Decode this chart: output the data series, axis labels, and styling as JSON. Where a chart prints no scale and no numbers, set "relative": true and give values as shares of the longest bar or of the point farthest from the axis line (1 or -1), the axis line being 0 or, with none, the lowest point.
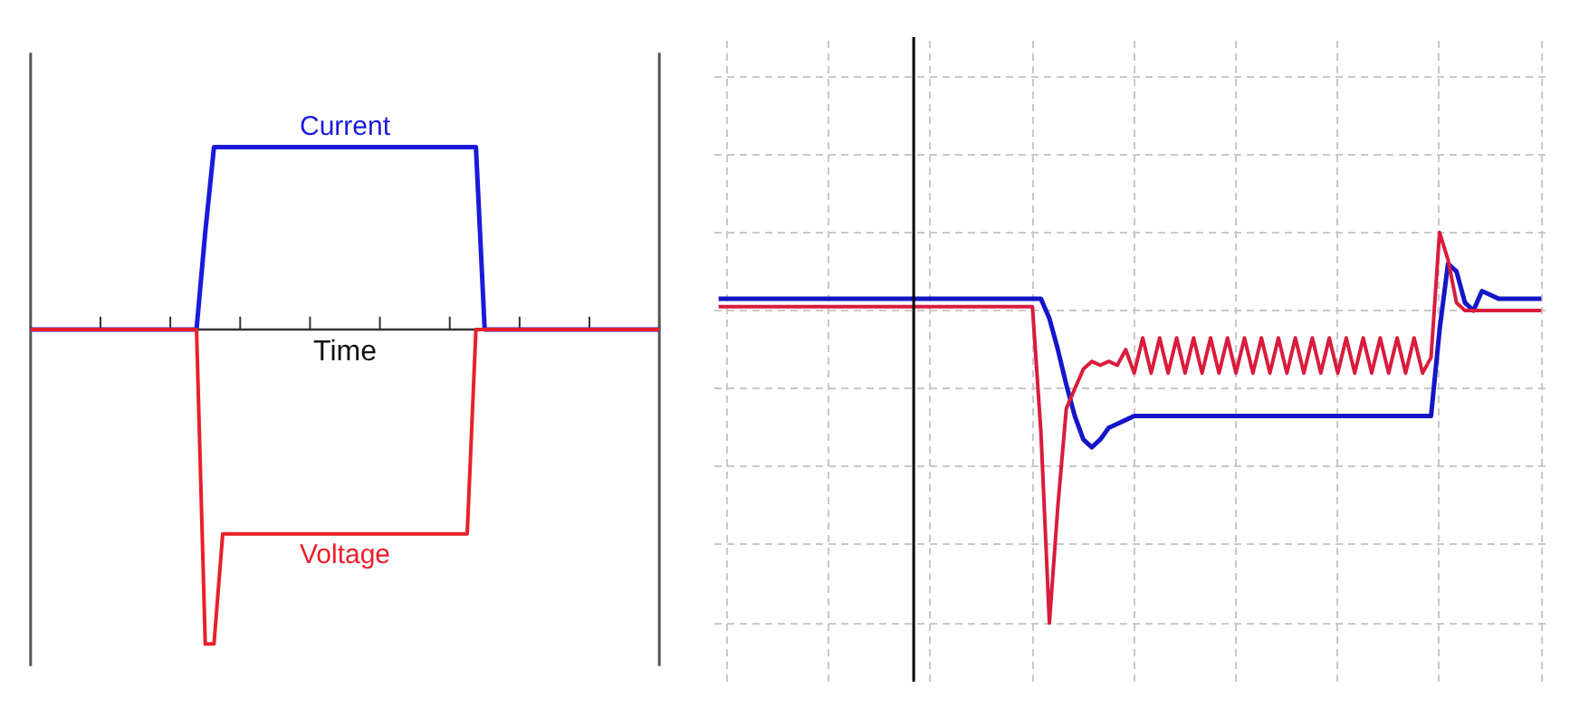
{
  "chart_data": [
    {
      "type": "line",
      "relative": true,
      "xlabel": "Time",
      "grid": false,
      "categories": [
        null,
        null,
        null,
        null,
        null,
        null,
        null,
        null,
        null,
        null,
        null,
        null,
        null,
        null,
        null,
        null,
        null,
        null,
        null,
        null,
        null,
        null,
        null,
        null,
        null,
        null,
        null,
        null,
        null,
        null,
        null,
        null,
        null,
        null,
        null,
        null,
        null,
        null,
        null,
        null,
        null,
        null,
        null,
        null,
        null,
        null,
        null,
        null,
        null,
        null,
        null,
        null,
        null,
        null,
        null,
        null,
        null,
        null,
        null,
        null,
        null,
        null,
        null,
        null,
        null,
        null,
        null,
        null,
        null,
        null,
        null,
        null,
        null
      ],
      "series": [
        {
          "name": "Current",
          "color": "#1a1adb",
          "values": [
            0,
            0,
            0,
            0,
            0,
            0,
            0,
            0,
            0,
            0,
            0,
            0,
            0,
            0,
            0,
            0,
            0,
            0,
            0,
            0,
            0.31,
            0.58,
            0.58,
            0.58,
            0.58,
            0.58,
            0.58,
            0.58,
            0.58,
            0.58,
            0.58,
            0.58,
            0.58,
            0.58,
            0.58,
            0.58,
            0.58,
            0.58,
            0.58,
            0.58,
            0.58,
            0.58,
            0.58,
            0.58,
            0.58,
            0.58,
            0.58,
            0.58,
            0.58,
            0.58,
            0.58,
            0.58,
            0,
            0,
            0,
            0,
            0,
            0,
            0,
            0,
            0,
            0,
            0,
            0,
            0,
            0,
            0,
            0,
            0,
            0,
            0,
            0,
            0
          ]
        },
        {
          "name": "Voltage",
          "color": "#e8202a",
          "values": [
            0,
            0,
            0,
            0,
            0,
            0,
            0,
            0,
            0,
            0,
            0,
            0,
            0,
            0,
            0,
            0,
            0,
            0,
            0,
            0,
            -1,
            -1,
            -0.65,
            -0.65,
            -0.65,
            -0.65,
            -0.65,
            -0.65,
            -0.65,
            -0.65,
            -0.65,
            -0.65,
            -0.65,
            -0.65,
            -0.65,
            -0.65,
            -0.65,
            -0.65,
            -0.65,
            -0.65,
            -0.65,
            -0.65,
            -0.65,
            -0.65,
            -0.65,
            -0.65,
            -0.65,
            -0.65,
            -0.65,
            -0.65,
            -0.65,
            0,
            0,
            0,
            0,
            0,
            0,
            0,
            0,
            0,
            0,
            0,
            0,
            0,
            0,
            0,
            0,
            0,
            0,
            0,
            0,
            0,
            0
          ]
        }
      ]
    },
    {
      "type": "line",
      "relative": true,
      "grid": true,
      "categories": [
        null,
        null,
        null,
        null,
        null,
        null,
        null,
        null,
        null,
        null,
        null,
        null,
        null,
        null,
        null,
        null,
        null,
        null,
        null,
        null,
        null,
        null,
        null,
        null,
        null,
        null,
        null,
        null,
        null,
        null,
        null,
        null,
        null,
        null,
        null,
        null,
        null,
        null,
        null,
        null,
        null,
        null,
        null,
        null,
        null,
        null,
        null,
        null,
        null,
        null,
        null,
        null,
        null,
        null,
        null,
        null,
        null,
        null,
        null,
        null,
        null,
        null,
        null,
        null,
        null,
        null,
        null,
        null,
        null,
        null,
        null,
        null,
        null,
        null,
        null,
        null,
        null,
        null,
        null,
        null,
        null,
        null,
        null,
        null,
        null,
        null,
        null,
        null,
        null,
        null,
        null,
        null,
        null,
        null,
        null,
        null,
        null,
        null
      ],
      "series": [
        {
          "color": "#1515c8",
          "values": [
            0.83,
            0.83,
            0.83,
            0.83,
            0.83,
            0.83,
            0.83,
            0.83,
            0.83,
            0.83,
            0.83,
            0.83,
            0.83,
            0.83,
            0.83,
            0.83,
            0.83,
            0.83,
            0.83,
            0.83,
            0.83,
            0.83,
            0.83,
            0.83,
            0.83,
            0.83,
            0.83,
            0.83,
            0.83,
            0.83,
            0.83,
            0.83,
            0.83,
            0.83,
            0.83,
            0.83,
            0.83,
            0.83,
            0.83,
            0.78,
            0.7,
            0.61,
            0.53,
            0.47,
            0.45,
            0.47,
            0.5,
            0.51,
            0.52,
            0.53,
            0.53,
            0.53,
            0.53,
            0.53,
            0.53,
            0.53,
            0.53,
            0.53,
            0.53,
            0.53,
            0.53,
            0.53,
            0.53,
            0.53,
            0.53,
            0.53,
            0.53,
            0.53,
            0.53,
            0.53,
            0.53,
            0.53,
            0.53,
            0.53,
            0.53,
            0.53,
            0.53,
            0.53,
            0.53,
            0.53,
            0.53,
            0.53,
            0.53,
            0.53,
            0.53,
            0.75,
            0.92,
            0.9,
            0.82,
            0.8,
            0.85,
            0.84,
            0.83,
            0.83,
            0.83,
            0.83,
            0.83,
            0.83
          ]
        },
        {
          "color": "#d91c3c",
          "values": [
            0.81,
            0.81,
            0.81,
            0.81,
            0.81,
            0.81,
            0.81,
            0.81,
            0.81,
            0.81,
            0.81,
            0.81,
            0.81,
            0.81,
            0.81,
            0.81,
            0.81,
            0.81,
            0.81,
            0.81,
            0.81,
            0.81,
            0.81,
            0.81,
            0.81,
            0.81,
            0.81,
            0.81,
            0.81,
            0.81,
            0.81,
            0.81,
            0.81,
            0.81,
            0.81,
            0.81,
            0.81,
            0.81,
            0.49,
            0,
            0.3,
            0.55,
            0.6,
            0.65,
            0.67,
            0.66,
            0.67,
            0.66,
            0.7,
            0.64,
            0.73,
            0.64,
            0.73,
            0.64,
            0.73,
            0.64,
            0.73,
            0.64,
            0.73,
            0.64,
            0.73,
            0.64,
            0.73,
            0.64,
            0.73,
            0.64,
            0.73,
            0.64,
            0.73,
            0.64,
            0.73,
            0.64,
            0.73,
            0.64,
            0.73,
            0.64,
            0.73,
            0.64,
            0.73,
            0.64,
            0.73,
            0.64,
            0.73,
            0.64,
            0.68,
            1.0,
            0.93,
            0.82,
            0.8,
            0.8,
            0.8,
            0.8,
            0.8,
            0.8,
            0.8,
            0.8,
            0.8,
            0.8
          ]
        }
      ]
    }
  ]
}
